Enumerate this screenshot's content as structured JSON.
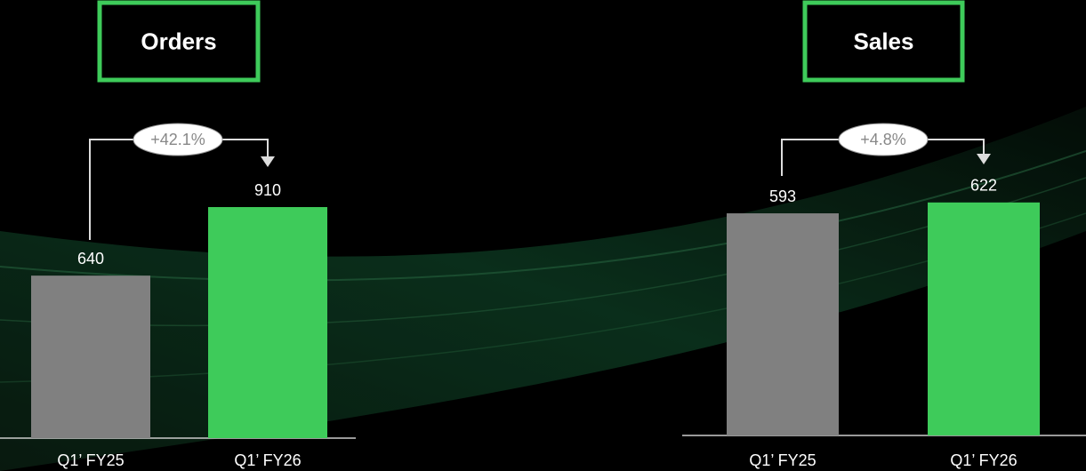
{
  "chart_data": [
    {
      "type": "bar",
      "title": "Orders",
      "categories": [
        "Q1’ FY25",
        "Q1’ FY26"
      ],
      "values": [
        640,
        910
      ],
      "colors": [
        "#808080",
        "#3ecb5a"
      ],
      "annotation": "+42.1%"
    },
    {
      "type": "bar",
      "title": "Sales",
      "categories": [
        "Q1’ FY25",
        "Q1’ FY26"
      ],
      "values": [
        593,
        622
      ],
      "colors": [
        "#808080",
        "#3ecb5a"
      ],
      "annotation": "+4.8%"
    }
  ]
}
